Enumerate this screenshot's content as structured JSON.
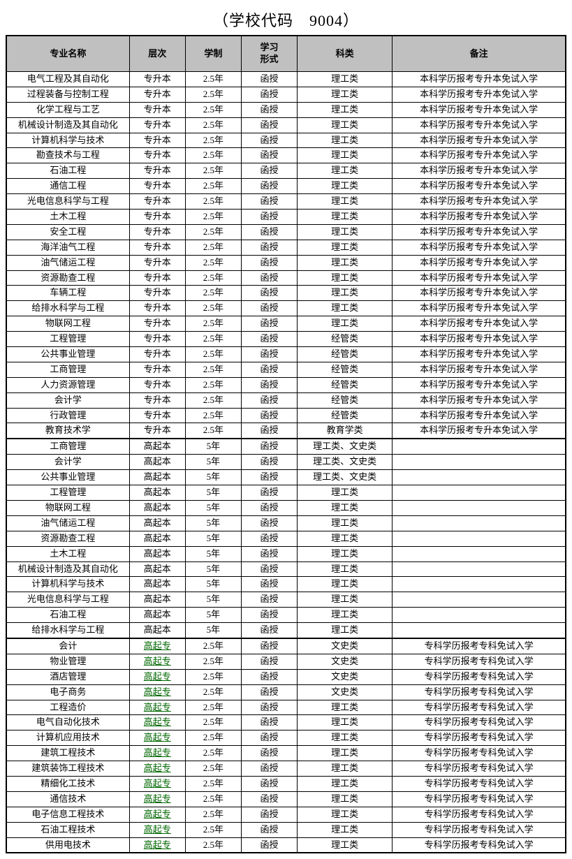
{
  "title": "（学校代码　9004）",
  "columns": [
    "专业名称",
    "层次",
    "学制",
    "学习\n形式",
    "科类",
    "备注"
  ],
  "col_widths": [
    "22%",
    "10%",
    "10%",
    "10%",
    "17%",
    "31%"
  ],
  "header_bg": "#c0c0c0",
  "link_color": "#006600",
  "sections": [
    {
      "level_link": false,
      "rows": [
        [
          "电气工程及其自动化",
          "专升本",
          "2.5年",
          "函授",
          "理工类",
          "本科学历报考专升本免试入学"
        ],
        [
          "过程装备与控制工程",
          "专升本",
          "2.5年",
          "函授",
          "理工类",
          "本科学历报考专升本免试入学"
        ],
        [
          "化学工程与工艺",
          "专升本",
          "2.5年",
          "函授",
          "理工类",
          "本科学历报考专升本免试入学"
        ],
        [
          "机械设计制造及其自动化",
          "专升本",
          "2.5年",
          "函授",
          "理工类",
          "本科学历报考专升本免试入学"
        ],
        [
          "计算机科学与技术",
          "专升本",
          "2.5年",
          "函授",
          "理工类",
          "本科学历报考专升本免试入学"
        ],
        [
          "勘查技术与工程",
          "专升本",
          "2.5年",
          "函授",
          "理工类",
          "本科学历报考专升本免试入学"
        ],
        [
          "石油工程",
          "专升本",
          "2.5年",
          "函授",
          "理工类",
          "本科学历报考专升本免试入学"
        ],
        [
          "通信工程",
          "专升本",
          "2.5年",
          "函授",
          "理工类",
          "本科学历报考专升本免试入学"
        ],
        [
          "光电信息科学与工程",
          "专升本",
          "2.5年",
          "函授",
          "理工类",
          "本科学历报考专升本免试入学"
        ],
        [
          "土木工程",
          "专升本",
          "2.5年",
          "函授",
          "理工类",
          "本科学历报考专升本免试入学"
        ],
        [
          "安全工程",
          "专升本",
          "2.5年",
          "函授",
          "理工类",
          "本科学历报考专升本免试入学"
        ],
        [
          "海洋油气工程",
          "专升本",
          "2.5年",
          "函授",
          "理工类",
          "本科学历报考专升本免试入学"
        ],
        [
          "油气储运工程",
          "专升本",
          "2.5年",
          "函授",
          "理工类",
          "本科学历报考专升本免试入学"
        ],
        [
          "资源勘查工程",
          "专升本",
          "2.5年",
          "函授",
          "理工类",
          "本科学历报考专升本免试入学"
        ],
        [
          "车辆工程",
          "专升本",
          "2.5年",
          "函授",
          "理工类",
          "本科学历报考专升本免试入学"
        ],
        [
          "给排水科学与工程",
          "专升本",
          "2.5年",
          "函授",
          "理工类",
          "本科学历报考专升本免试入学"
        ],
        [
          "物联网工程",
          "专升本",
          "2.5年",
          "函授",
          "理工类",
          "本科学历报考专升本免试入学"
        ],
        [
          "工程管理",
          "专升本",
          "2.5年",
          "函授",
          "经管类",
          "本科学历报考专升本免试入学"
        ],
        [
          "公共事业管理",
          "专升本",
          "2.5年",
          "函授",
          "经管类",
          "本科学历报考专升本免试入学"
        ],
        [
          "工商管理",
          "专升本",
          "2.5年",
          "函授",
          "经管类",
          "本科学历报考专升本免试入学"
        ],
        [
          "人力资源管理",
          "专升本",
          "2.5年",
          "函授",
          "经管类",
          "本科学历报考专升本免试入学"
        ],
        [
          "会计学",
          "专升本",
          "2.5年",
          "函授",
          "经管类",
          "本科学历报考专升本免试入学"
        ],
        [
          "行政管理",
          "专升本",
          "2.5年",
          "函授",
          "经管类",
          "本科学历报考专升本免试入学"
        ],
        [
          "教育技术学",
          "专升本",
          "2.5年",
          "函授",
          "教育学类",
          "本科学历报考专升本免试入学"
        ]
      ]
    },
    {
      "level_link": false,
      "rows": [
        [
          "工商管理",
          "高起本",
          "5年",
          "函授",
          "理工类、文史类",
          ""
        ],
        [
          "会计学",
          "高起本",
          "5年",
          "函授",
          "理工类、文史类",
          ""
        ],
        [
          "公共事业管理",
          "高起本",
          "5年",
          "函授",
          "理工类、文史类",
          ""
        ],
        [
          "工程管理",
          "高起本",
          "5年",
          "函授",
          "理工类",
          ""
        ],
        [
          "物联网工程",
          "高起本",
          "5年",
          "函授",
          "理工类",
          ""
        ],
        [
          "油气储运工程",
          "高起本",
          "5年",
          "函授",
          "理工类",
          ""
        ],
        [
          "资源勘查工程",
          "高起本",
          "5年",
          "函授",
          "理工类",
          ""
        ],
        [
          "土木工程",
          "高起本",
          "5年",
          "函授",
          "理工类",
          ""
        ],
        [
          "机械设计制造及其自动化",
          "高起本",
          "5年",
          "函授",
          "理工类",
          ""
        ],
        [
          "计算机科学与技术",
          "高起本",
          "5年",
          "函授",
          "理工类",
          ""
        ],
        [
          "光电信息科学与工程",
          "高起本",
          "5年",
          "函授",
          "理工类",
          ""
        ],
        [
          "石油工程",
          "高起本",
          "5年",
          "函授",
          "理工类",
          ""
        ],
        [
          "给排水科学与工程",
          "高起本",
          "5年",
          "函授",
          "理工类",
          ""
        ]
      ]
    },
    {
      "level_link": true,
      "rows": [
        [
          "会计",
          "高起专",
          "2.5年",
          "函授",
          "文史类",
          "专科学历报考专科免试入学"
        ],
        [
          "物业管理",
          "高起专",
          "2.5年",
          "函授",
          "文史类",
          "专科学历报考专科免试入学"
        ],
        [
          "酒店管理",
          "高起专",
          "2.5年",
          "函授",
          "文史类",
          "专科学历报考专科免试入学"
        ],
        [
          "电子商务",
          "高起专",
          "2.5年",
          "函授",
          "文史类",
          "专科学历报考专科免试入学"
        ],
        [
          "工程造价",
          "高起专",
          "2.5年",
          "函授",
          "理工类",
          "专科学历报考专科免试入学"
        ],
        [
          "电气自动化技术",
          "高起专",
          "2.5年",
          "函授",
          "理工类",
          "专科学历报考专科免试入学"
        ],
        [
          "计算机应用技术",
          "高起专",
          "2.5年",
          "函授",
          "理工类",
          "专科学历报考专科免试入学"
        ],
        [
          "建筑工程技术",
          "高起专",
          "2.5年",
          "函授",
          "理工类",
          "专科学历报考专科免试入学"
        ],
        [
          "建筑装饰工程技术",
          "高起专",
          "2.5年",
          "函授",
          "理工类",
          "专科学历报考专科免试入学"
        ],
        [
          "精细化工技术",
          "高起专",
          "2.5年",
          "函授",
          "理工类",
          "专科学历报考专科免试入学"
        ],
        [
          "通信技术",
          "高起专",
          "2.5年",
          "函授",
          "理工类",
          "专科学历报考专科免试入学"
        ],
        [
          "电子信息工程技术",
          "高起专",
          "2.5年",
          "函授",
          "理工类",
          "专科学历报考专科免试入学"
        ],
        [
          "石油工程技术",
          "高起专",
          "2.5年",
          "函授",
          "理工类",
          "专科学历报考专科免试入学"
        ],
        [
          "供用电技术",
          "高起专",
          "2.5年",
          "函授",
          "理工类",
          "专科学历报考专科免试入学"
        ]
      ]
    }
  ]
}
